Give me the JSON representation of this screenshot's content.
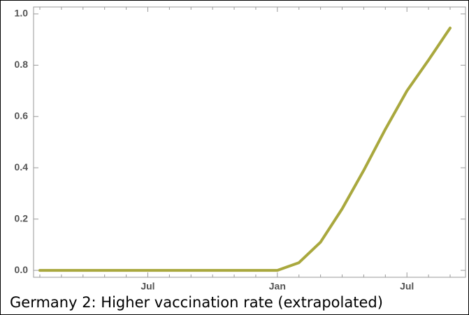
{
  "chart_data": {
    "type": "line",
    "caption": "Germany 2: Higher vaccination rate (extrapolated)",
    "categories": [
      null,
      null,
      null,
      null,
      null,
      "Jul",
      null,
      null,
      null,
      null,
      null,
      "Jan",
      null,
      null,
      null,
      null,
      null,
      "Jul",
      null,
      null
    ],
    "values": [
      0,
      0,
      0,
      0,
      0,
      0,
      0,
      0,
      0,
      0,
      0,
      0,
      0.03,
      0.11,
      0.24,
      0.39,
      0.55,
      0.7,
      0.82,
      0.945
    ],
    "color": "#a9a83e",
    "ylim": [
      -0.027,
      1.027
    ],
    "yticks": [
      {
        "value": 0,
        "label": "0.0"
      },
      0.2,
      0.4,
      0.6,
      0.8,
      {
        "value": 1,
        "label": "1.0"
      }
    ]
  }
}
